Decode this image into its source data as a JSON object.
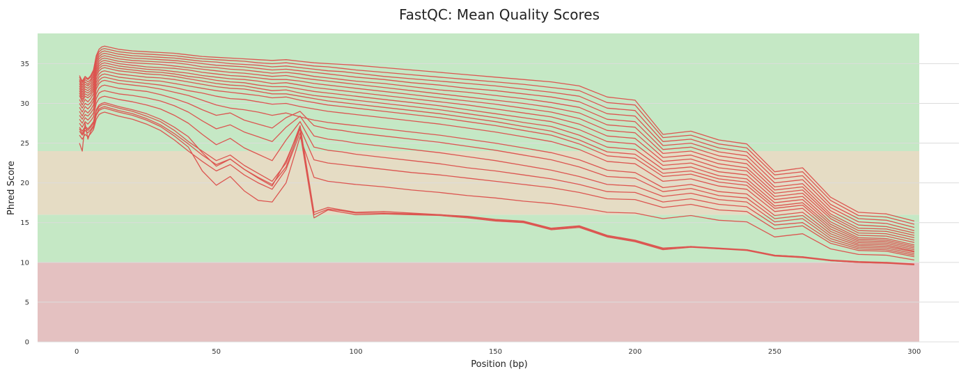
{
  "chart_data": {
    "type": "line",
    "title": "FastQC: Mean Quality Scores",
    "xlabel": "Position (bp)",
    "ylabel": "Phred Score",
    "xlim": [
      -14,
      316
    ],
    "ylim": [
      0,
      38.8
    ],
    "x_ticks": [
      "0",
      "50",
      "100",
      "150",
      "200",
      "250",
      "300"
    ],
    "y_ticks": [
      "0",
      "5",
      "10",
      "15",
      "20",
      "25",
      "30",
      "35"
    ],
    "grid": "horizontal",
    "legend": "none",
    "background_bands": [
      {
        "from": 0,
        "to": 10,
        "color": "#e4c1c1"
      },
      {
        "from": 10,
        "to": 16,
        "color": "#c5e8c5"
      },
      {
        "from": 16,
        "to": 24,
        "color": "#e5dcc4"
      },
      {
        "from": 24,
        "to": 38.8,
        "color": "#c5e8c5"
      }
    ],
    "line_color": "#dc5550",
    "x": [
      1,
      2,
      3,
      4,
      5,
      6,
      7,
      8,
      9,
      10,
      15,
      20,
      25,
      30,
      35,
      40,
      45,
      50,
      55,
      60,
      65,
      70,
      75,
      80,
      85,
      90,
      95,
      100,
      110,
      120,
      130,
      140,
      150,
      160,
      170,
      180,
      190,
      200,
      210,
      220,
      230,
      240,
      250,
      260,
      270,
      280,
      290,
      300
    ],
    "series": [
      {
        "values": [
          33.5,
          32.8,
          33.4,
          33.1,
          33.5,
          34.2,
          36.0,
          36.8,
          37.1,
          37.2,
          36.8,
          36.6,
          36.5,
          36.4,
          36.3,
          36.1,
          35.9,
          35.8,
          35.7,
          35.6,
          35.5,
          35.4,
          35.5,
          35.3,
          35.1,
          35.0,
          34.9,
          34.8,
          34.5,
          34.2,
          33.9,
          33.6,
          33.3,
          33.0,
          32.7,
          32.2,
          30.8,
          30.4,
          26.1,
          26.5,
          25.4,
          24.9,
          21.4,
          21.9,
          18.2,
          16.3,
          16.1,
          15.2
        ]
      },
      {
        "values": [
          33.3,
          32.6,
          33.2,
          33.0,
          33.3,
          34.0,
          35.8,
          36.5,
          36.8,
          36.9,
          36.5,
          36.3,
          36.2,
          36.1,
          36.0,
          35.8,
          35.6,
          35.5,
          35.4,
          35.3,
          35.1,
          35.0,
          35.1,
          34.9,
          34.7,
          34.6,
          34.4,
          34.2,
          33.9,
          33.6,
          33.3,
          33.0,
          32.7,
          32.4,
          32.0,
          31.6,
          30.1,
          29.8,
          25.7,
          26.0,
          24.9,
          24.4,
          21.0,
          21.4,
          17.8,
          15.9,
          15.7,
          14.8
        ]
      },
      {
        "values": [
          33.0,
          32.3,
          33.0,
          32.7,
          33.0,
          33.7,
          35.5,
          36.2,
          36.5,
          36.6,
          36.2,
          36.0,
          35.9,
          35.8,
          35.7,
          35.5,
          35.3,
          35.2,
          35.0,
          34.9,
          34.8,
          34.6,
          34.7,
          34.5,
          34.3,
          34.1,
          34.0,
          33.8,
          33.4,
          33.1,
          32.8,
          32.5,
          32.2,
          31.8,
          31.4,
          30.9,
          29.4,
          29.1,
          25.2,
          25.5,
          24.4,
          23.9,
          20.5,
          20.9,
          17.3,
          15.5,
          15.3,
          14.4
        ]
      },
      {
        "values": [
          32.8,
          32.0,
          32.7,
          32.4,
          32.8,
          33.4,
          35.2,
          35.9,
          36.2,
          36.3,
          35.9,
          35.7,
          35.6,
          35.5,
          35.4,
          35.2,
          35.0,
          34.8,
          34.7,
          34.6,
          34.4,
          34.2,
          34.3,
          34.1,
          33.9,
          33.7,
          33.5,
          33.3,
          33.0,
          32.6,
          32.3,
          31.9,
          31.6,
          31.2,
          30.8,
          30.2,
          28.7,
          28.4,
          24.7,
          25.0,
          23.9,
          23.4,
          20.0,
          20.4,
          16.9,
          15.1,
          14.9,
          14.0
        ]
      },
      {
        "values": [
          32.5,
          31.7,
          32.4,
          32.2,
          32.5,
          33.1,
          34.9,
          35.6,
          35.9,
          36.0,
          35.6,
          35.4,
          35.3,
          35.2,
          35.1,
          34.9,
          34.6,
          34.5,
          34.3,
          34.2,
          34.0,
          33.8,
          33.9,
          33.7,
          33.4,
          33.2,
          33.0,
          32.8,
          32.5,
          32.1,
          31.7,
          31.4,
          31.0,
          30.6,
          30.1,
          29.5,
          28.0,
          27.7,
          24.2,
          24.5,
          23.4,
          22.9,
          19.5,
          19.9,
          16.5,
          14.7,
          14.5,
          13.7
        ]
      },
      {
        "values": [
          32.2,
          31.4,
          32.1,
          31.9,
          32.2,
          32.8,
          34.6,
          35.3,
          35.6,
          35.7,
          35.3,
          35.1,
          35.0,
          34.9,
          34.7,
          34.5,
          34.3,
          34.1,
          33.9,
          33.8,
          33.6,
          33.4,
          33.5,
          33.2,
          33.0,
          32.8,
          32.6,
          32.4,
          32.0,
          31.6,
          31.2,
          30.8,
          30.4,
          30.0,
          29.5,
          28.8,
          27.3,
          27.0,
          23.7,
          24.0,
          22.9,
          22.4,
          19.1,
          19.5,
          16.1,
          14.3,
          14.2,
          13.4
        ]
      },
      {
        "values": [
          31.9,
          31.1,
          31.8,
          31.6,
          31.9,
          32.5,
          34.3,
          35.0,
          35.3,
          35.4,
          35.0,
          34.8,
          34.6,
          34.5,
          34.4,
          34.2,
          33.9,
          33.7,
          33.5,
          33.4,
          33.2,
          33.0,
          33.0,
          32.8,
          32.5,
          32.3,
          32.1,
          31.9,
          31.5,
          31.1,
          30.7,
          30.3,
          29.9,
          29.4,
          28.9,
          28.1,
          26.6,
          26.3,
          23.2,
          23.5,
          22.4,
          21.9,
          18.7,
          19.1,
          15.8,
          14.0,
          13.9,
          13.1
        ]
      },
      {
        "values": [
          31.6,
          30.8,
          31.5,
          31.3,
          31.6,
          32.2,
          34.0,
          34.7,
          35.0,
          35.1,
          34.7,
          34.5,
          34.3,
          34.2,
          34.0,
          33.8,
          33.5,
          33.3,
          33.1,
          33.0,
          32.8,
          32.5,
          32.6,
          32.3,
          32.0,
          31.8,
          31.6,
          31.4,
          31.0,
          30.6,
          30.2,
          29.8,
          29.3,
          28.8,
          28.3,
          27.4,
          25.9,
          25.6,
          22.7,
          23.0,
          21.9,
          21.5,
          18.3,
          18.7,
          15.5,
          13.7,
          13.6,
          12.8
        ]
      },
      {
        "values": [
          31.3,
          30.5,
          31.2,
          31.0,
          31.3,
          31.9,
          33.7,
          34.4,
          34.7,
          34.8,
          34.4,
          34.2,
          34.0,
          33.9,
          33.7,
          33.4,
          33.2,
          32.9,
          32.7,
          32.6,
          32.3,
          32.1,
          32.1,
          31.8,
          31.5,
          31.3,
          31.1,
          30.9,
          30.5,
          30.1,
          29.7,
          29.2,
          28.7,
          28.2,
          27.7,
          26.7,
          25.2,
          24.9,
          22.2,
          22.5,
          21.4,
          21.0,
          17.9,
          18.3,
          15.1,
          13.4,
          13.3,
          12.5
        ]
      },
      {
        "values": [
          31.0,
          30.2,
          30.9,
          30.7,
          31.0,
          31.6,
          33.4,
          34.1,
          34.4,
          34.5,
          34.1,
          33.9,
          33.7,
          33.6,
          33.4,
          33.1,
          32.8,
          32.5,
          32.3,
          32.2,
          31.9,
          31.6,
          31.7,
          31.3,
          31.0,
          30.8,
          30.6,
          30.4,
          30.0,
          29.6,
          29.2,
          28.7,
          28.2,
          27.6,
          27.1,
          26.0,
          24.5,
          24.2,
          21.7,
          22.0,
          20.9,
          20.5,
          17.5,
          17.9,
          14.8,
          13.1,
          13.0,
          12.2
        ]
      },
      {
        "values": [
          30.5,
          29.8,
          30.5,
          30.2,
          30.6,
          31.2,
          33.0,
          33.7,
          34.0,
          34.1,
          33.7,
          33.5,
          33.3,
          33.2,
          33.0,
          32.7,
          32.4,
          32.1,
          31.9,
          31.8,
          31.5,
          31.2,
          31.2,
          30.9,
          30.6,
          30.3,
          30.1,
          29.9,
          29.5,
          29.1,
          28.7,
          28.2,
          27.7,
          27.1,
          26.5,
          25.4,
          23.9,
          23.6,
          21.2,
          21.5,
          20.5,
          20.1,
          17.1,
          17.5,
          14.5,
          12.9,
          12.8,
          12.0
        ]
      },
      {
        "values": [
          30.0,
          29.4,
          30.0,
          29.8,
          30.1,
          30.7,
          32.6,
          33.3,
          33.6,
          33.7,
          33.3,
          33.1,
          32.9,
          32.8,
          32.5,
          32.2,
          31.9,
          31.6,
          31.4,
          31.2,
          31.0,
          30.7,
          30.8,
          30.4,
          30.1,
          29.8,
          29.6,
          29.4,
          29.0,
          28.6,
          28.2,
          27.7,
          27.2,
          26.6,
          26.0,
          24.9,
          23.4,
          23.1,
          20.8,
          21.1,
          20.1,
          19.7,
          16.8,
          17.2,
          14.2,
          12.7,
          12.6,
          11.8
        ]
      },
      {
        "values": [
          29.5,
          28.9,
          29.6,
          29.3,
          29.7,
          30.3,
          32.2,
          32.9,
          33.2,
          33.3,
          32.9,
          32.7,
          32.5,
          32.3,
          32.0,
          31.6,
          31.3,
          30.9,
          30.6,
          30.5,
          30.2,
          29.9,
          30.0,
          29.6,
          29.3,
          29.0,
          28.8,
          28.6,
          28.2,
          27.8,
          27.4,
          26.9,
          26.4,
          25.8,
          25.2,
          24.2,
          22.7,
          22.4,
          20.2,
          20.5,
          19.6,
          19.2,
          16.4,
          16.8,
          13.9,
          12.5,
          12.4,
          11.6
        ]
      },
      {
        "values": [
          29.0,
          28.4,
          29.1,
          28.8,
          29.2,
          29.8,
          31.8,
          32.5,
          32.8,
          32.9,
          32.5,
          32.3,
          32.1,
          31.8,
          31.4,
          31.0,
          30.4,
          29.8,
          29.4,
          29.2,
          28.9,
          28.5,
          28.8,
          28.3,
          27.9,
          27.6,
          27.4,
          27.2,
          26.8,
          26.4,
          26.0,
          25.5,
          25.0,
          24.4,
          23.8,
          22.9,
          21.6,
          21.3,
          19.4,
          19.8,
          18.9,
          18.6,
          15.9,
          16.3,
          13.6,
          12.3,
          12.2,
          11.4
        ]
      },
      {
        "values": [
          28.5,
          28.0,
          28.6,
          28.4,
          28.8,
          29.3,
          31.2,
          31.9,
          32.2,
          32.3,
          31.9,
          31.7,
          31.5,
          31.1,
          30.6,
          30.0,
          29.2,
          28.5,
          28.8,
          27.9,
          27.4,
          26.9,
          28.2,
          29.0,
          27.2,
          26.8,
          26.6,
          26.3,
          25.9,
          25.5,
          25.1,
          24.6,
          24.1,
          23.5,
          22.9,
          22.0,
          20.8,
          20.6,
          18.9,
          19.3,
          18.4,
          18.1,
          15.5,
          15.9,
          13.3,
          12.1,
          12.0,
          11.3
        ]
      },
      {
        "values": [
          28.0,
          27.5,
          28.2,
          27.9,
          28.3,
          28.8,
          30.6,
          31.3,
          31.5,
          31.6,
          31.2,
          31.0,
          30.7,
          30.3,
          29.7,
          28.9,
          27.8,
          26.8,
          27.3,
          26.4,
          25.8,
          25.2,
          27.0,
          28.4,
          25.9,
          25.5,
          25.3,
          25.0,
          24.6,
          24.2,
          23.8,
          23.3,
          22.8,
          22.2,
          21.6,
          20.8,
          19.8,
          19.6,
          18.3,
          18.7,
          17.9,
          17.6,
          15.1,
          15.5,
          13.0,
          11.9,
          11.8,
          11.1
        ]
      },
      {
        "values": [
          27.5,
          27.0,
          27.7,
          27.4,
          27.8,
          28.3,
          30.0,
          30.6,
          30.8,
          30.9,
          30.5,
          30.2,
          29.8,
          29.3,
          28.5,
          27.5,
          26.1,
          24.8,
          25.6,
          24.4,
          23.6,
          22.8,
          25.4,
          27.7,
          24.5,
          24.1,
          23.9,
          23.6,
          23.2,
          22.8,
          22.4,
          21.9,
          21.5,
          21.0,
          20.5,
          19.8,
          18.9,
          18.8,
          17.6,
          18.0,
          17.3,
          17.0,
          14.7,
          15.0,
          12.7,
          11.7,
          11.6,
          10.9
        ]
      },
      {
        "values": [
          27.0,
          26.5,
          27.1,
          26.8,
          27.2,
          27.7,
          29.2,
          29.8,
          30.0,
          30.1,
          29.6,
          29.2,
          28.7,
          28.0,
          27.0,
          25.8,
          23.8,
          22.1,
          23.0,
          21.7,
          20.6,
          19.6,
          22.8,
          26.9,
          22.9,
          22.5,
          22.3,
          22.1,
          21.7,
          21.3,
          21.0,
          20.6,
          20.2,
          19.8,
          19.4,
          18.8,
          18.0,
          17.9,
          16.9,
          17.3,
          16.6,
          16.4,
          14.2,
          14.6,
          12.4,
          11.5,
          11.4,
          10.7
        ]
      },
      {
        "values": [
          26.5,
          26.0,
          26.6,
          26.3,
          26.7,
          27.2,
          28.5,
          29.1,
          29.3,
          29.4,
          28.9,
          28.5,
          27.9,
          27.1,
          25.9,
          24.5,
          21.5,
          19.7,
          20.8,
          19.0,
          17.8,
          17.6,
          20.0,
          25.8,
          20.7,
          20.2,
          20.0,
          19.8,
          19.5,
          19.1,
          18.8,
          18.4,
          18.1,
          17.7,
          17.4,
          16.9,
          16.3,
          16.2,
          15.5,
          15.9,
          15.3,
          15.1,
          13.2,
          13.6,
          11.7,
          11.0,
          10.9,
          10.3
        ]
      },
      {
        "values": [
          26.0,
          25.5,
          26.1,
          25.8,
          26.2,
          26.7,
          28.0,
          28.6,
          28.8,
          28.9,
          28.4,
          28.0,
          27.4,
          26.6,
          25.4,
          24.0,
          22.7,
          21.5,
          22.3,
          21.0,
          20.0,
          19.2,
          21.7,
          26.3,
          15.6,
          16.6,
          16.3,
          16.0,
          16.1,
          16.0,
          15.9,
          15.6,
          15.2,
          15.0,
          14.1,
          14.4,
          13.2,
          12.6,
          11.6,
          11.9,
          11.7,
          11.5,
          10.8,
          10.6,
          10.2,
          10.0,
          9.9,
          9.7
        ]
      },
      {
        "values": [
          26.8,
          26.2,
          26.9,
          26.6,
          27.0,
          27.5,
          29.0,
          29.6,
          29.8,
          29.9,
          29.4,
          29.0,
          28.4,
          27.7,
          26.6,
          25.2,
          24.0,
          22.8,
          23.5,
          22.2,
          21.2,
          20.2,
          22.5,
          27.2,
          16.3,
          16.9,
          16.6,
          16.3,
          16.4,
          16.2,
          16.0,
          15.8,
          15.4,
          15.2,
          14.3,
          14.6,
          13.4,
          12.8,
          11.8,
          12.0,
          11.8,
          11.6,
          10.9,
          10.7,
          10.3,
          10.1,
          10.0,
          9.8
        ]
      },
      {
        "values": [
          25.0,
          24.0,
          27.5,
          25.5,
          26.5,
          27.0,
          28.6,
          29.3,
          29.5,
          29.6,
          29.1,
          28.7,
          28.1,
          27.3,
          26.2,
          24.9,
          23.5,
          22.3,
          23.0,
          21.7,
          20.7,
          19.8,
          22.0,
          26.8,
          16.0,
          16.7,
          16.5,
          16.2,
          16.2,
          16.1,
          16.0,
          15.7,
          15.3,
          15.1,
          14.2,
          14.5,
          13.3,
          12.7,
          11.7,
          12.0,
          11.7,
          11.6,
          10.9,
          10.7,
          10.2,
          10.0,
          9.9,
          9.8
        ]
      }
    ]
  }
}
